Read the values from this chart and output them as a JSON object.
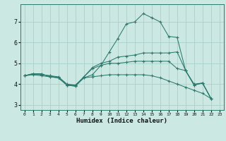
{
  "xlabel": "Humidex (Indice chaleur)",
  "bg_color": "#cce8e3",
  "grid_color": "#a0cdc7",
  "line_color": "#2a7a6e",
  "xlim": [
    -0.5,
    23.5
  ],
  "ylim": [
    2.75,
    7.85
  ],
  "xticks": [
    0,
    1,
    2,
    3,
    4,
    5,
    6,
    7,
    8,
    9,
    10,
    11,
    12,
    13,
    14,
    15,
    16,
    17,
    18,
    19,
    20,
    21,
    22,
    23
  ],
  "yticks": [
    3,
    4,
    5,
    6,
    7
  ],
  "lines": [
    [
      4.4,
      4.5,
      4.5,
      4.35,
      4.3,
      3.95,
      3.95,
      4.3,
      4.45,
      4.9,
      5.55,
      6.2,
      6.9,
      7.0,
      7.4,
      7.2,
      7.0,
      6.3,
      6.25,
      4.65,
      4.0,
      4.05,
      3.3
    ],
    [
      4.4,
      4.5,
      4.45,
      4.4,
      4.3,
      3.95,
      3.9,
      4.35,
      4.8,
      5.0,
      5.1,
      5.3,
      5.35,
      5.4,
      5.5,
      5.5,
      5.5,
      5.5,
      5.55,
      4.65,
      3.95,
      4.05,
      3.3
    ],
    [
      4.4,
      4.5,
      4.45,
      4.4,
      4.35,
      4.0,
      3.95,
      4.35,
      4.75,
      4.9,
      5.0,
      5.0,
      5.05,
      5.1,
      5.1,
      5.1,
      5.1,
      5.1,
      4.75,
      4.65,
      3.95,
      4.05,
      3.3
    ],
    [
      4.4,
      4.45,
      4.4,
      4.35,
      4.3,
      3.95,
      3.9,
      4.3,
      4.35,
      4.4,
      4.45,
      4.45,
      4.45,
      4.45,
      4.45,
      4.4,
      4.3,
      4.15,
      4.0,
      3.85,
      3.7,
      3.55,
      3.3
    ]
  ]
}
